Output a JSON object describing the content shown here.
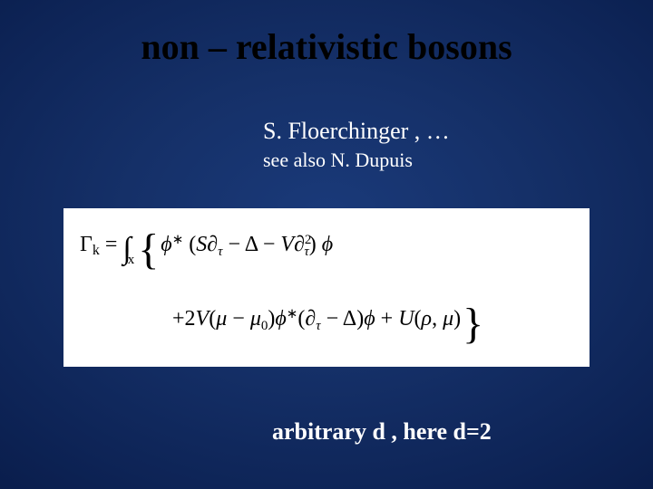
{
  "slide": {
    "title": "non – relativistic bosons",
    "author": "S. Floerchinger , …",
    "seealso": "see also N. Dupuis",
    "footer": "arbitrary d , here d=2",
    "background_gradient": [
      "#1a3a7a",
      "#153068",
      "#0d2355",
      "#061640",
      "#020b28"
    ],
    "title_color": "#000000",
    "body_text_color": "#ffffff",
    "title_fontsize_pt": 30,
    "body_fontsize_pt": 20,
    "seealso_fontsize_pt": 17,
    "footer_fontsize_pt": 20
  },
  "equation": {
    "box_bg": "#ffffff",
    "box_text_color": "#000000",
    "line1": {
      "gamma": "Γ",
      "gamma_sub": "k",
      "equals": "  =  ",
      "int": "∫",
      "int_sub": "x",
      "lbrace": "{",
      "phi_star": "ϕ",
      "star": "∗",
      "lparen": " (",
      "S": "S",
      "partial": "∂",
      "tau": "τ",
      "minus1": " − Δ − ",
      "V": "V",
      "partial2": "∂",
      "sq": "2",
      "tau2": "τ",
      "rparen": ") ",
      "phi": "ϕ"
    },
    "line2": {
      "plus": "+2",
      "V": "V",
      "lparen": "(",
      "mu": "μ",
      "minus": " − ",
      "mu0": "μ",
      "zero": "0",
      "rparen": ")",
      "phi_star": "ϕ",
      "star": "∗",
      "lparen2": "(",
      "partial": "∂",
      "tau": "τ",
      "minus2": " − Δ)",
      "phi": "ϕ",
      "plusU": " + ",
      "U": "U",
      "lparen3": "(",
      "rho": "ρ",
      "comma": ", ",
      "mu2": "μ",
      "rparen3": ")",
      "rbrace": "}"
    }
  }
}
